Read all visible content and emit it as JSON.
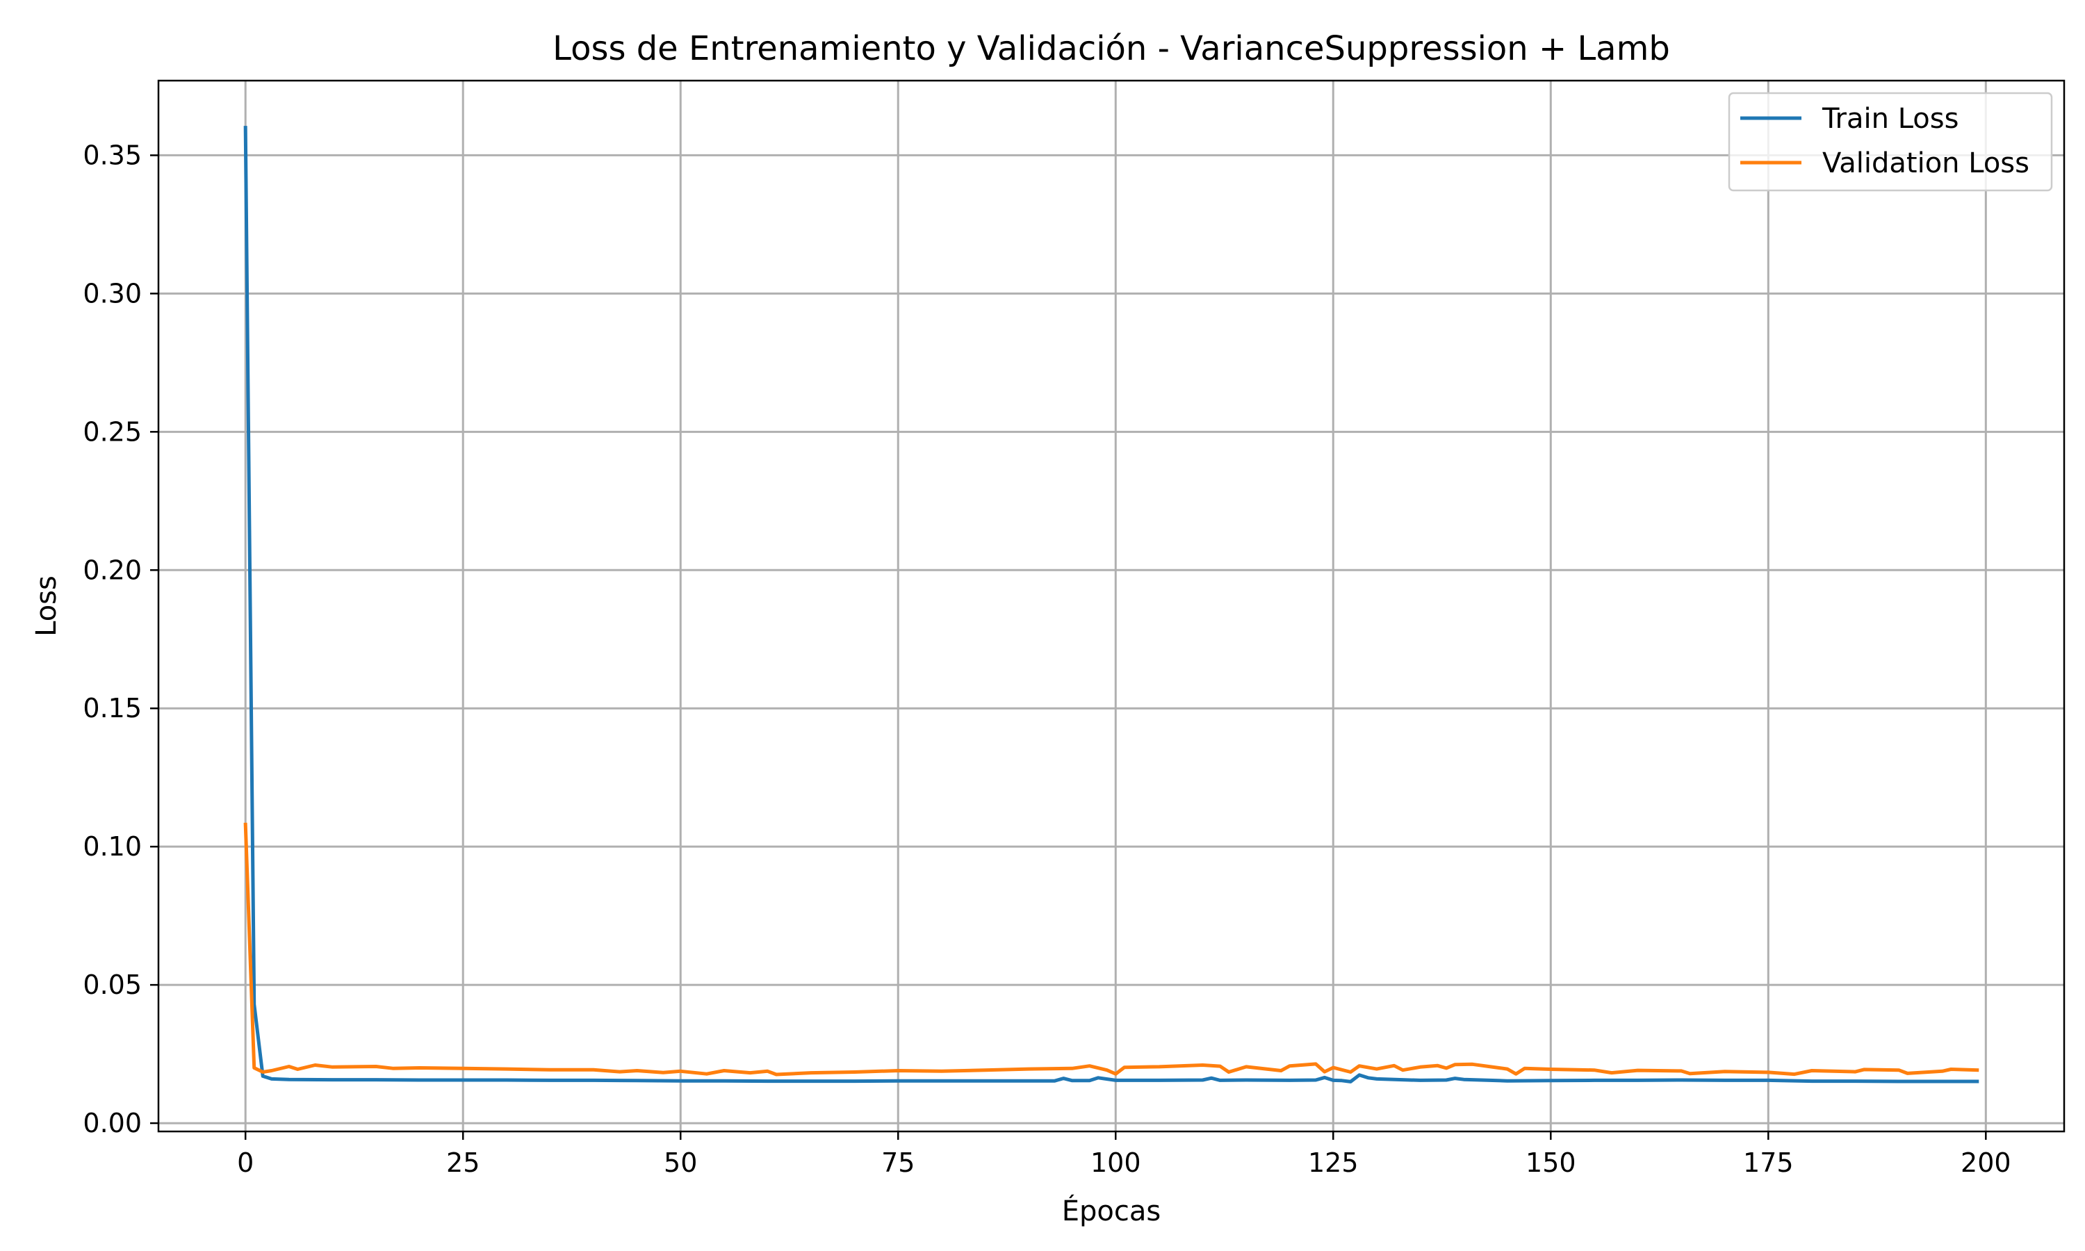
{
  "chart_data": {
    "type": "line",
    "title": "Loss de Entrenamiento y Validación - VarianceSuppression + Lamb",
    "xlabel": "Épocas",
    "ylabel": "Loss",
    "xlim": [
      -10,
      209
    ],
    "ylim": [
      -0.003,
      0.377
    ],
    "xticks": [
      0,
      25,
      50,
      75,
      100,
      125,
      150,
      175,
      200
    ],
    "yticks": [
      0.0,
      0.05,
      0.1,
      0.15,
      0.2,
      0.25,
      0.3,
      0.35
    ],
    "xtick_labels": [
      "0",
      "25",
      "50",
      "75",
      "100",
      "125",
      "150",
      "175",
      "200"
    ],
    "ytick_labels": [
      "0.00",
      "0.05",
      "0.10",
      "0.15",
      "0.20",
      "0.25",
      "0.30",
      "0.35"
    ],
    "grid": true,
    "legend_position": "top-right",
    "series": [
      {
        "name": "Train Loss",
        "color": "#1f77b4",
        "x": [
          0,
          1,
          2,
          3,
          5,
          10,
          15,
          20,
          25,
          30,
          35,
          40,
          45,
          50,
          55,
          60,
          65,
          70,
          75,
          80,
          85,
          90,
          93,
          94,
          95,
          97,
          98,
          100,
          105,
          110,
          111,
          112,
          115,
          120,
          123,
          124,
          125,
          126,
          127,
          128,
          129,
          130,
          135,
          138,
          139,
          140,
          145,
          150,
          155,
          160,
          165,
          170,
          175,
          180,
          185,
          190,
          195,
          199
        ],
        "y": [
          0.36,
          0.043,
          0.017,
          0.016,
          0.0158,
          0.0157,
          0.0157,
          0.0156,
          0.0156,
          0.0156,
          0.0155,
          0.0155,
          0.0154,
          0.0153,
          0.0153,
          0.0152,
          0.0152,
          0.0152,
          0.0153,
          0.0153,
          0.0153,
          0.0153,
          0.0153,
          0.0162,
          0.0154,
          0.0154,
          0.0164,
          0.0155,
          0.0155,
          0.0156,
          0.0163,
          0.0155,
          0.0156,
          0.0155,
          0.0156,
          0.0165,
          0.0155,
          0.0154,
          0.015,
          0.0174,
          0.0164,
          0.016,
          0.0155,
          0.0156,
          0.0162,
          0.0158,
          0.0153,
          0.0154,
          0.0155,
          0.0155,
          0.0156,
          0.0155,
          0.0155,
          0.0152,
          0.0152,
          0.0151,
          0.0151,
          0.0151
        ]
      },
      {
        "name": "Validation Loss",
        "color": "#ff7f0e",
        "x": [
          0,
          1,
          2,
          3,
          5,
          6,
          8,
          10,
          15,
          17,
          20,
          25,
          30,
          35,
          40,
          43,
          45,
          48,
          50,
          53,
          55,
          58,
          60,
          61,
          65,
          70,
          75,
          80,
          85,
          90,
          95,
          97,
          99,
          100,
          101,
          105,
          110,
          112,
          113,
          115,
          119,
          120,
          123,
          124,
          125,
          127,
          128,
          130,
          132,
          133,
          135,
          137,
          138,
          139,
          141,
          145,
          146,
          147,
          150,
          155,
          157,
          160,
          165,
          166,
          170,
          175,
          178,
          180,
          185,
          186,
          190,
          191,
          195,
          196,
          199
        ],
        "y": [
          0.108,
          0.02,
          0.0185,
          0.019,
          0.0205,
          0.0195,
          0.021,
          0.0203,
          0.0205,
          0.0198,
          0.02,
          0.0198,
          0.0196,
          0.0193,
          0.0193,
          0.0186,
          0.019,
          0.0183,
          0.0188,
          0.0178,
          0.019,
          0.0182,
          0.0188,
          0.0176,
          0.0182,
          0.0185,
          0.019,
          0.0188,
          0.0192,
          0.0196,
          0.0198,
          0.0207,
          0.0192,
          0.0178,
          0.0202,
          0.0204,
          0.021,
          0.0206,
          0.0185,
          0.0204,
          0.019,
          0.0207,
          0.0214,
          0.0186,
          0.0201,
          0.0185,
          0.0207,
          0.0196,
          0.0208,
          0.0192,
          0.0203,
          0.0208,
          0.0199,
          0.0212,
          0.0213,
          0.0196,
          0.0178,
          0.0198,
          0.0195,
          0.0192,
          0.0182,
          0.0191,
          0.0189,
          0.0179,
          0.0187,
          0.0184,
          0.0177,
          0.019,
          0.0186,
          0.0194,
          0.0192,
          0.018,
          0.0188,
          0.0195,
          0.0192
        ]
      }
    ]
  }
}
